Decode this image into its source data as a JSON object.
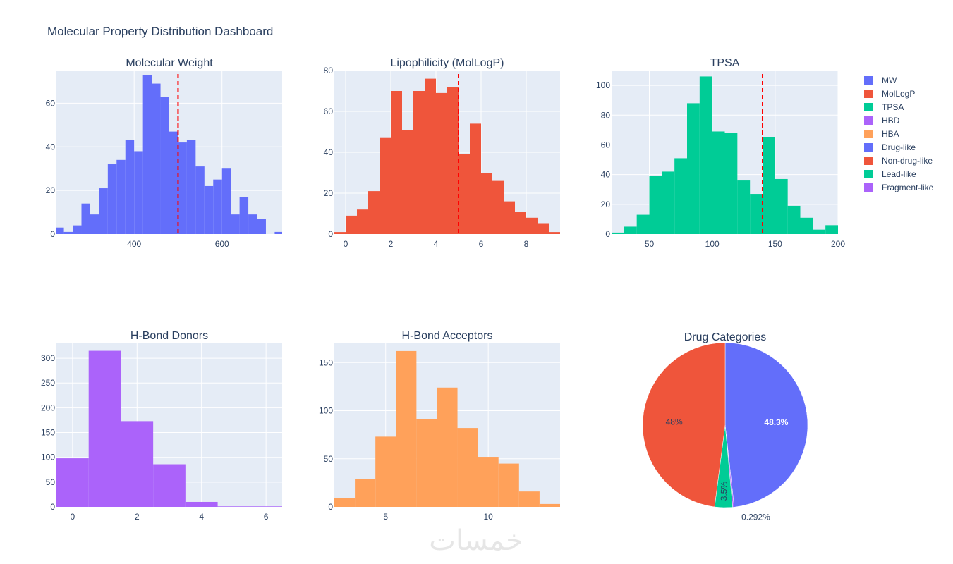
{
  "dashboard": {
    "title": "Molecular Property Distribution Dashboard",
    "watermark": "خمسات"
  },
  "colors": {
    "plot_bg": "#e5ecf6",
    "grid": "#ffffff",
    "threshold": "#ff0000",
    "text": "#2a3f5f"
  },
  "legend": {
    "position": "top-right",
    "items": [
      {
        "label": "MW",
        "color": "#636efa"
      },
      {
        "label": "MolLogP",
        "color": "#ef553b"
      },
      {
        "label": "TPSA",
        "color": "#00cc96"
      },
      {
        "label": "HBD",
        "color": "#ab63fa"
      },
      {
        "label": "HBA",
        "color": "#ffa15a"
      },
      {
        "label": "Drug-like",
        "color": "#636efa"
      },
      {
        "label": "Non-drug-like",
        "color": "#ef553b"
      },
      {
        "label": "Lead-like",
        "color": "#00cc96"
      },
      {
        "label": "Fragment-like",
        "color": "#ab63fa"
      }
    ]
  },
  "chart_data": [
    {
      "id": "mw",
      "type": "bar",
      "title": "Molecular Weight",
      "color": "#636efa",
      "xlim": [
        223,
        737
      ],
      "ylim": [
        0,
        75
      ],
      "xticks": [
        400,
        600
      ],
      "yticks": [
        0,
        20,
        40,
        60
      ],
      "bin_start": 220,
      "bin_width": 20,
      "values": [
        3,
        1,
        4,
        14,
        9,
        21,
        32,
        34,
        43,
        38,
        73,
        69,
        63,
        47,
        42,
        43,
        31,
        22,
        25,
        30,
        9,
        17,
        9,
        7,
        0,
        1
      ],
      "threshold": 500
    },
    {
      "id": "logp",
      "type": "bar",
      "title": "Lipophilicity (MolLogP)",
      "color": "#ef553b",
      "xlim": [
        -0.5,
        9.5
      ],
      "ylim": [
        0,
        80
      ],
      "xticks": [
        0,
        2,
        4,
        6,
        8
      ],
      "yticks": [
        0,
        20,
        40,
        60,
        80
      ],
      "bin_start": -0.5,
      "bin_width": 0.5,
      "values": [
        1,
        9,
        12,
        21,
        47,
        70,
        51,
        70,
        76,
        69,
        72,
        39,
        54,
        30,
        26,
        16,
        11,
        8,
        5,
        1
      ],
      "threshold": 5
    },
    {
      "id": "tpsa",
      "type": "bar",
      "title": "TPSA",
      "color": "#00cc96",
      "xlim": [
        20,
        200
      ],
      "ylim": [
        0,
        110
      ],
      "xticks": [
        50,
        100,
        150,
        200
      ],
      "yticks": [
        0,
        20,
        40,
        60,
        80,
        100
      ],
      "bin_start": 20,
      "bin_width": 10,
      "values": [
        1,
        5,
        13,
        39,
        42,
        51,
        88,
        106,
        69,
        68,
        36,
        27,
        65,
        37,
        19,
        11,
        3,
        6
      ],
      "threshold": 140
    },
    {
      "id": "hbd",
      "type": "bar",
      "title": "H-Bond Donors",
      "color": "#ab63fa",
      "xlim": [
        -0.5,
        6.5
      ],
      "ylim": [
        0,
        330
      ],
      "xticks": [
        0,
        2,
        4,
        6
      ],
      "yticks": [
        0,
        50,
        100,
        150,
        200,
        250,
        300
      ],
      "bin_start": -0.5,
      "bin_width": 1,
      "values": [
        98,
        315,
        173,
        86,
        10,
        1,
        1
      ]
    },
    {
      "id": "hba",
      "type": "bar",
      "title": "H-Bond Acceptors",
      "color": "#ffa15a",
      "xlim": [
        2.5,
        13.5
      ],
      "ylim": [
        0,
        170
      ],
      "xticks": [
        5,
        10
      ],
      "yticks": [
        0,
        50,
        100,
        150
      ],
      "bin_start": 2.5,
      "bin_width": 1,
      "values": [
        9,
        29,
        73,
        162,
        91,
        124,
        82,
        52,
        45,
        16,
        3
      ]
    },
    {
      "id": "categories",
      "type": "pie",
      "title": "Drug Categories",
      "slices": [
        {
          "label": "Drug-like",
          "value": 48.3,
          "text": "48.3%",
          "color": "#636efa"
        },
        {
          "label": "Fragment-like",
          "value": 0.292,
          "text": "0.292%",
          "color": "#ab63fa"
        },
        {
          "label": "Lead-like",
          "value": 3.5,
          "text": "3.5%",
          "color": "#00cc96"
        },
        {
          "label": "Non-drug-like",
          "value": 48.0,
          "text": "48%",
          "color": "#ef553b"
        }
      ]
    }
  ]
}
